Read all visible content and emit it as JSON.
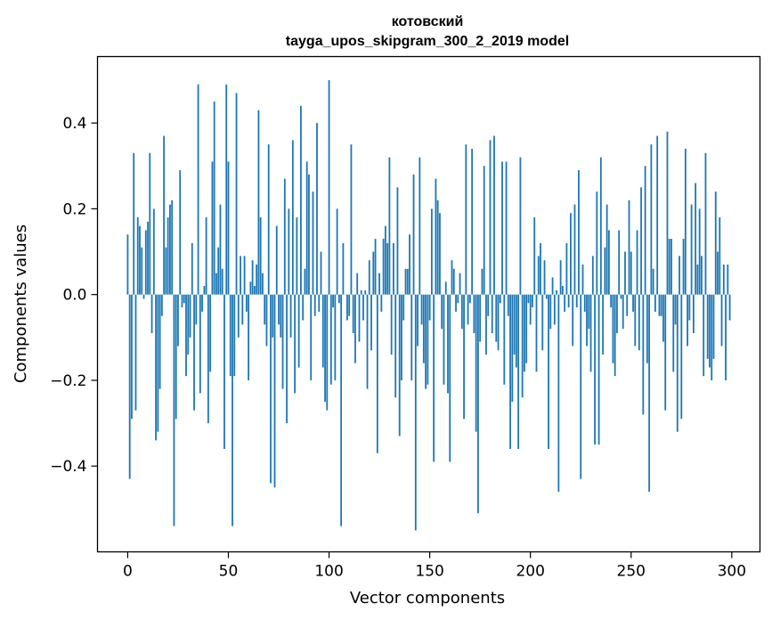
{
  "chart_data": {
    "type": "bar",
    "title_line1": "котовский",
    "title_line2": "tayga_upos_skipgram_300_2_2019 model",
    "xlabel": "Vector components",
    "ylabel": "Components values",
    "xlim": [
      -15,
      314
    ],
    "ylim": [
      -0.6,
      0.555
    ],
    "xticks": [
      0,
      50,
      100,
      150,
      200,
      250,
      300
    ],
    "xtick_labels": [
      "0",
      "50",
      "100",
      "150",
      "200",
      "250",
      "300"
    ],
    "yticks": [
      -0.4,
      -0.2,
      0.0,
      0.2,
      0.4
    ],
    "ytick_labels": [
      "−0.4",
      "−0.2",
      "0.0",
      "0.2",
      "0.4"
    ],
    "bar_color": "#1f77b4",
    "values": [
      0.14,
      -0.43,
      -0.29,
      0.33,
      -0.27,
      0.18,
      0.16,
      0.11,
      -0.01,
      0.15,
      0.17,
      0.33,
      -0.09,
      0.2,
      -0.34,
      -0.32,
      -0.22,
      -0.05,
      0.37,
      0.11,
      0.18,
      0.21,
      0.22,
      -0.54,
      -0.29,
      -0.12,
      0.29,
      -0.03,
      -0.02,
      -0.19,
      -0.14,
      -0.1,
      0.12,
      -0.27,
      -0.07,
      0.49,
      -0.23,
      -0.04,
      0.02,
      0.18,
      -0.3,
      -0.18,
      0.31,
      0.45,
      0.05,
      0.11,
      0.21,
      0.06,
      -0.36,
      0.49,
      0.31,
      -0.19,
      -0.54,
      -0.19,
      0.47,
      -0.1,
      0.09,
      -0.07,
      0.09,
      -0.04,
      -0.2,
      0.03,
      0.08,
      0.02,
      0.07,
      0.43,
      0.18,
      0.05,
      -0.07,
      -0.12,
      0.35,
      -0.44,
      -0.1,
      -0.45,
      0.16,
      -0.07,
      -0.1,
      -0.22,
      0.27,
      -0.3,
      0.2,
      -0.1,
      0.36,
      -0.23,
      0.18,
      -0.17,
      0.44,
      -0.06,
      0.06,
      0.31,
      0.28,
      -0.2,
      0.24,
      -0.05,
      0.4,
      -0.04,
      0.1,
      -0.17,
      -0.25,
      -0.27,
      0.5,
      -0.21,
      -0.03,
      -0.2,
      0.2,
      -0.02,
      -0.54,
      0.12,
      0.0,
      -0.06,
      -0.05,
      0.35,
      -0.09,
      -0.16,
      0.05,
      -0.11,
      0.01,
      -0.06,
      0.01,
      -0.22,
      0.08,
      -0.13,
      0.1,
      0.13,
      -0.37,
      0.05,
      -0.04,
      0.13,
      0.16,
      0.12,
      0.32,
      -0.14,
      0.12,
      -0.24,
      0.25,
      -0.33,
      -0.2,
      -0.06,
      0.06,
      0.06,
      0.14,
      -0.2,
      0.28,
      -0.55,
      -0.12,
      0.32,
      -0.07,
      -0.16,
      -0.22,
      -0.21,
      -0.06,
      0.2,
      -0.39,
      0.27,
      0.22,
      0.19,
      -0.08,
      -0.21,
      0.03,
      -0.23,
      -0.39,
      0.08,
      0.06,
      -0.04,
      -0.02,
      0.05,
      -0.08,
      -0.29,
      0.35,
      -0.07,
      -0.02,
      0.34,
      -0.09,
      -0.32,
      -0.51,
      -0.11,
      0.06,
      0.3,
      -0.14,
      -0.05,
      0.36,
      -0.09,
      0.37,
      -0.11,
      -0.13,
      -0.02,
      0.31,
      -0.21,
      0.31,
      -0.05,
      -0.36,
      -0.25,
      -0.14,
      -0.17,
      -0.36,
      0.32,
      -0.24,
      -0.18,
      -0.16,
      -0.02,
      -0.07,
      -0.03,
      0.18,
      -0.18,
      0.09,
      0.12,
      -0.13,
      0.08,
      -0.01,
      -0.36,
      -0.08,
      0.04,
      -0.07,
      0.01,
      -0.46,
      0.08,
      0.02,
      -0.04,
      0.12,
      -0.03,
      0.19,
      -0.12,
      0.21,
      -0.03,
      0.29,
      -0.43,
      0.07,
      -0.04,
      -0.12,
      -0.08,
      -0.18,
      0.09,
      -0.35,
      0.24,
      -0.35,
      0.32,
      -0.14,
      0.11,
      0.21,
      0.15,
      -0.03,
      -0.16,
      -0.19,
      -0.09,
      0.15,
      -0.01,
      -0.08,
      0.1,
      -0.05,
      0.22,
      0.1,
      -0.04,
      -0.12,
      0.15,
      -0.13,
      0.25,
      -0.28,
      0.3,
      -0.16,
      -0.46,
      0.35,
      0.06,
      -0.04,
      0.37,
      -0.05,
      -0.05,
      -0.11,
      -0.27,
      0.38,
      0.13,
      0.13,
      -0.18,
      -0.07,
      -0.32,
      0.09,
      -0.29,
      0.13,
      0.34,
      -0.12,
      -0.06,
      0.21,
      -0.09,
      0.26,
      0.07,
      0.2,
      0.09,
      -0.19,
      0.33,
      -0.15,
      -0.17,
      -0.2,
      -0.15,
      0.24,
      0.1,
      0.18,
      -0.12,
      0.07,
      -0.2,
      0.07,
      -0.06
    ]
  }
}
